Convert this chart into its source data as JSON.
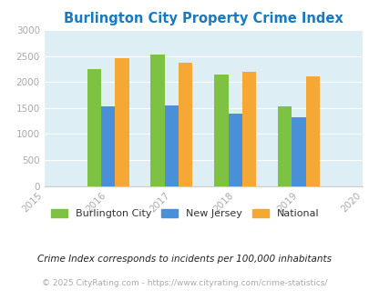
{
  "title": "Burlington City Property Crime Index",
  "years": [
    2016,
    2017,
    2018,
    2019
  ],
  "burlington": [
    2250,
    2530,
    2140,
    1525
  ],
  "new_jersey": [
    1535,
    1555,
    1400,
    1320
  ],
  "national": [
    2465,
    2365,
    2195,
    2100
  ],
  "bar_color_burlington": "#7dc242",
  "bar_color_nj": "#4a90d9",
  "bar_color_national": "#f5a833",
  "bg_color": "#ddeef5",
  "xlim": [
    2015,
    2020
  ],
  "ylim": [
    0,
    3000
  ],
  "yticks": [
    0,
    500,
    1000,
    1500,
    2000,
    2500,
    3000
  ],
  "xticks": [
    2015,
    2016,
    2017,
    2018,
    2019,
    2020
  ],
  "legend_labels": [
    "Burlington City",
    "New Jersey",
    "National"
  ],
  "footnote1": "Crime Index corresponds to incidents per 100,000 inhabitants",
  "footnote2": "© 2025 CityRating.com - https://www.cityrating.com/crime-statistics/",
  "title_color": "#1a7abf",
  "tick_color": "#aaaaaa",
  "footnote1_color": "#222222",
  "footnote2_color": "#aaaaaa",
  "bar_width": 0.22
}
